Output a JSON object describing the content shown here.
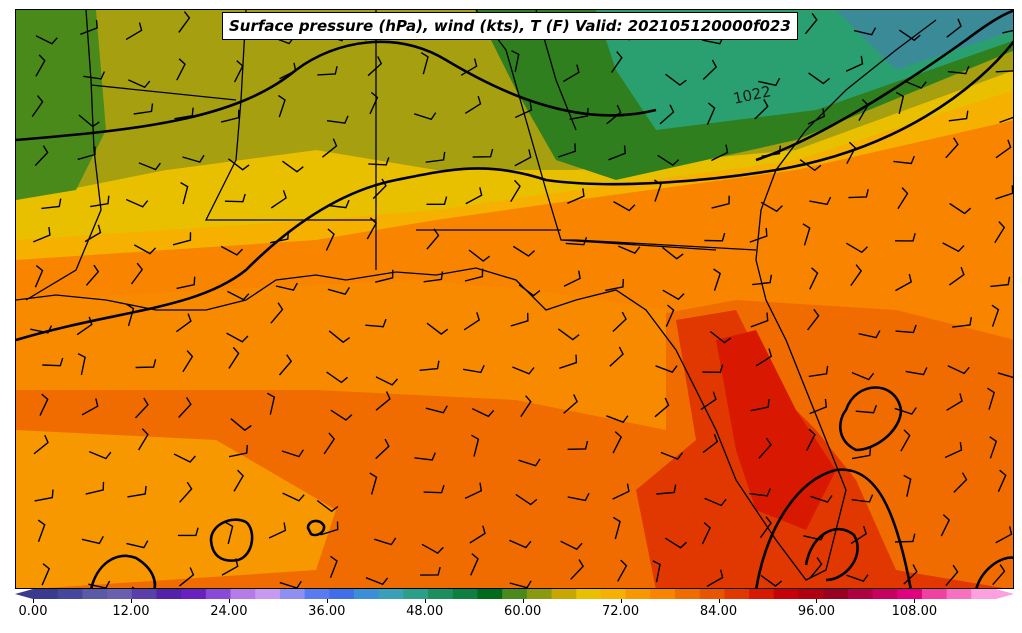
{
  "title": "Surface pressure (hPa), wind (kts), T (F) Valid: 202105120000f023",
  "isobar_label": "1022",
  "icons": [
    "wind-barb-icon"
  ],
  "colorbar": {
    "min": 0,
    "max": 118,
    "tick_values": [
      0,
      12,
      24,
      36,
      48,
      60,
      72,
      84,
      96,
      108
    ],
    "tick_labels": [
      "0.00",
      "12.00",
      "24.00",
      "36.00",
      "48.00",
      "60.00",
      "72.00",
      "84.00",
      "96.00",
      "108.00"
    ],
    "colors": [
      "#3a3b8f",
      "#45479c",
      "#5a5aa6",
      "#6a5fae",
      "#5b3fa8",
      "#5222a8",
      "#6a1fc0",
      "#8a4ad8",
      "#b57be8",
      "#c59af0",
      "#8f8ff2",
      "#5a7af2",
      "#3f6ee8",
      "#3c8fd6",
      "#3aa0b8",
      "#2aa088",
      "#1d8f5f",
      "#0f7f3f",
      "#006b1a",
      "#4a8a1a",
      "#8a9a10",
      "#c8a800",
      "#e8c000",
      "#f5b000",
      "#f89800",
      "#f88400",
      "#f06c00",
      "#e85400",
      "#e03800",
      "#d81800",
      "#c80008",
      "#b00010",
      "#9a0020",
      "#b00040",
      "#c80060",
      "#e00080",
      "#f040a0",
      "#f870c0",
      "#fda0e0"
    ]
  },
  "legend": {
    "variables": [
      "Surface pressure (hPa)",
      "wind (kts)",
      "T (F)"
    ]
  }
}
